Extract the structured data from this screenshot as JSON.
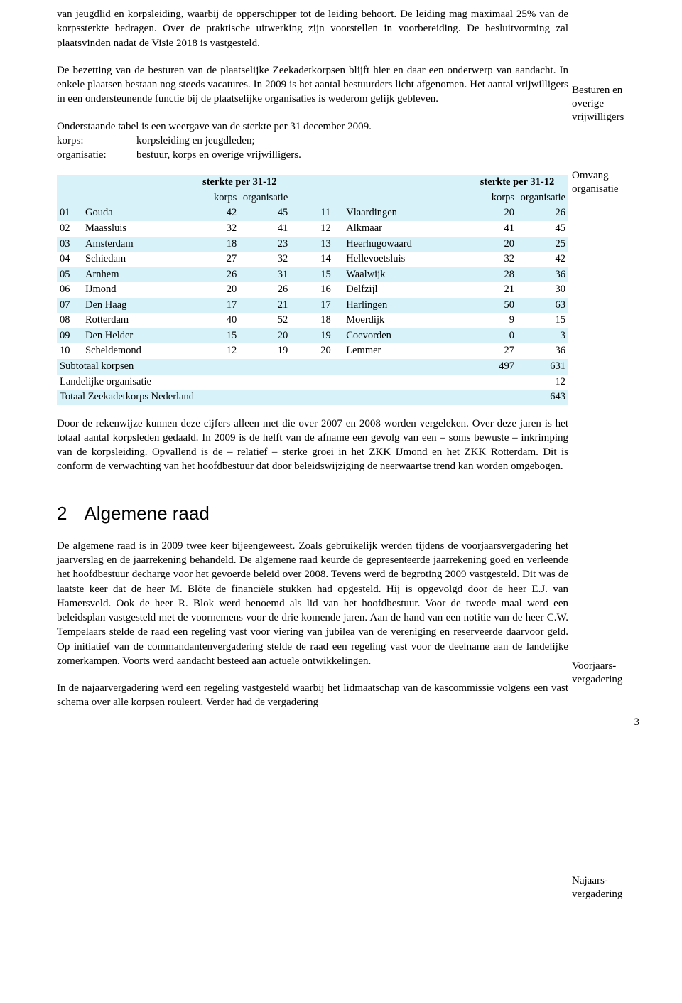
{
  "intro": {
    "p1": "van jeugdlid en korpsleiding, waarbij de opperschipper tot de leiding behoort. De leiding mag maximaal 25% van de korpssterkte bedragen. Over de praktische uitwerking zijn voorstellen in voorbereiding. De besluitvorming zal plaatsvinden nadat de Visie 2018 is vastgesteld.",
    "p2": "De bezetting van de besturen van de plaatselijke Zeekadetkorpsen blijft hier en daar een onderwerp van aandacht. In enkele plaatsen bestaan nog steeds vacatures. In 2009 is het aantal bestuurders licht afgenomen. Het aantal vrijwilligers in een ondersteunende functie bij de plaatselijke organisaties is wederom gelijk gebleven.",
    "p3_lead": "Onderstaande tabel is een weergave van de sterkte per 31 december 2009.",
    "def1_term": "korps:",
    "def1_desc": "korpsleiding en jeugdleden;",
    "def2_term": "organisatie:",
    "def2_desc": "bestuur, korps en overige vrijwilligers."
  },
  "margin": {
    "n1": "Besturen en overige vrijwilligers",
    "n2": "Omvang organisatie",
    "n3": "Voorjaars-vergadering",
    "n4": "Najaars-vergadering"
  },
  "table": {
    "header_group": "sterkte per 31-12",
    "col_korps": "korps",
    "col_org": "organisatie",
    "left": [
      {
        "id": "01",
        "name": "Gouda",
        "korps": "42",
        "org": "45"
      },
      {
        "id": "02",
        "name": "Maassluis",
        "korps": "32",
        "org": "41"
      },
      {
        "id": "03",
        "name": "Amsterdam",
        "korps": "18",
        "org": "23"
      },
      {
        "id": "04",
        "name": "Schiedam",
        "korps": "27",
        "org": "32"
      },
      {
        "id": "05",
        "name": "Arnhem",
        "korps": "26",
        "org": "31"
      },
      {
        "id": "06",
        "name": "IJmond",
        "korps": "20",
        "org": "26"
      },
      {
        "id": "07",
        "name": "Den Haag",
        "korps": "17",
        "org": "21"
      },
      {
        "id": "08",
        "name": "Rotterdam",
        "korps": "40",
        "org": "52"
      },
      {
        "id": "09",
        "name": "Den Helder",
        "korps": "15",
        "org": "20"
      },
      {
        "id": "10",
        "name": "Scheldemond",
        "korps": "12",
        "org": "19"
      }
    ],
    "right": [
      {
        "id": "11",
        "name": "Vlaardingen",
        "korps": "20",
        "org": "26"
      },
      {
        "id": "12",
        "name": "Alkmaar",
        "korps": "41",
        "org": "45"
      },
      {
        "id": "13",
        "name": "Heerhugowaard",
        "korps": "20",
        "org": "25"
      },
      {
        "id": "14",
        "name": "Hellevoetsluis",
        "korps": "32",
        "org": "42"
      },
      {
        "id": "15",
        "name": "Waalwijk",
        "korps": "28",
        "org": "36"
      },
      {
        "id": "16",
        "name": "Delfzijl",
        "korps": "21",
        "org": "30"
      },
      {
        "id": "17",
        "name": "Harlingen",
        "korps": "50",
        "org": "63"
      },
      {
        "id": "18",
        "name": "Moerdijk",
        "korps": "9",
        "org": "15"
      },
      {
        "id": "19",
        "name": "Coevorden",
        "korps": "0",
        "org": "3"
      },
      {
        "id": "20",
        "name": "Lemmer",
        "korps": "27",
        "org": "36"
      }
    ],
    "subtotal_label": "Subtotaal korpsen",
    "subtotal_korps": "497",
    "subtotal_org": "631",
    "land_label": "Landelijke organisatie",
    "land_org": "12",
    "total_label": "Totaal Zeekadetkorps Nederland",
    "total_org": "643",
    "highlight_color": "#d7f2f8",
    "row_odd_indices_left": [
      0,
      2,
      4,
      6,
      8
    ],
    "row_odd_indices_right": [
      0,
      2,
      4,
      6,
      8
    ],
    "font_size_pt": 11
  },
  "after_table": {
    "p": "Door de rekenwijze kunnen deze cijfers alleen met die over 2007 en 2008 worden vergeleken. Over deze jaren is het totaal aantal korpsleden gedaald. In 2009 is de helft van de afname een gevolg van een – soms bewuste – inkrimping van de korpsleiding. Opvallend is de – relatief – sterke groei in het ZKK IJmond en het ZKK Rotterdam. Dit is conform de verwachting van het hoofdbestuur dat door beleidswijziging de neerwaartse trend kan worden omgebogen."
  },
  "section2": {
    "num": "2",
    "title": "Algemene raad",
    "p1": "De algemene raad is in 2009 twee keer bijeengeweest. Zoals gebruikelijk werden tijdens de voorjaarsvergadering het jaarverslag en de jaarrekening behandeld. De algemene raad keurde de gepresenteerde jaarrekening goed en verleende het hoofdbestuur decharge voor het gevoerde beleid over 2008. Tevens werd de begroting 2009 vastgesteld. Dit was de laatste keer dat de heer M. Blöte de financiële stukken had opgesteld. Hij is opgevolgd door de heer E.J. van Hamersveld. Ook de heer R. Blok werd benoemd als lid van het hoofdbestuur. Voor de tweede maal werd een beleidsplan vastgesteld met de voornemens voor de drie komende jaren. Aan de hand van een notitie van de heer C.W. Tempelaars stelde de raad een regeling vast voor viering van jubilea van de vereniging en reserveerde daarvoor geld. Op initiatief van de commandantenvergadering stelde de raad een regeling vast voor de deelname aan de landelijke zomerkampen. Voorts werd aandacht besteed aan actuele ontwikkelingen.",
    "p2": "In de najaarvergadering werd een regeling vastgesteld waarbij het lidmaatschap van de kascommissie volgens een vast schema over alle korpsen rouleert. Verder had de vergadering"
  },
  "page_number": "3"
}
